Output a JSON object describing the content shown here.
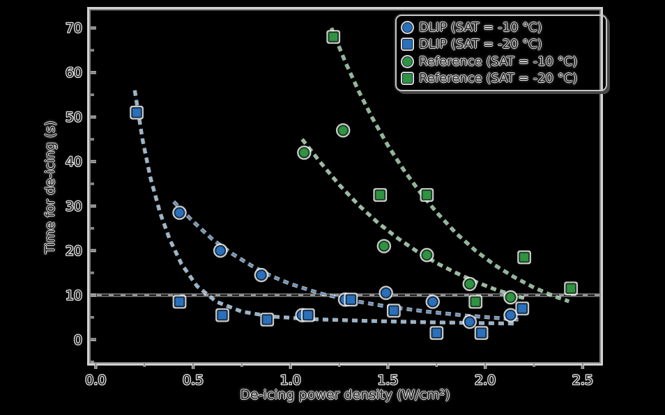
{
  "figure": {
    "background": "#000000"
  },
  "chart_data": {
    "type": "scatter",
    "title": "",
    "xlabel": "De-icing power density (W/cm²)",
    "ylabel": "Time for de-icing (s)",
    "xlim": [
      -0.03,
      2.59
    ],
    "ylim": [
      -5.2,
      74.1
    ],
    "grid": false,
    "legend_position": "upper right",
    "x_major_ticks": [
      0.0,
      0.5,
      1.0,
      1.5,
      2.0,
      2.5
    ],
    "x_tick_labels": [
      "0.0",
      "0.5",
      "1.0",
      "1.5",
      "2.0",
      "2.5"
    ],
    "x_minor_step": 0.25,
    "y_major_ticks": [
      0,
      10,
      20,
      30,
      40,
      50,
      60,
      70
    ],
    "y_tick_labels": [
      "0",
      "10",
      "20",
      "30",
      "40",
      "50",
      "60",
      "70"
    ],
    "y_minor_step": 5,
    "reference_line": {
      "y": 10,
      "description": "de-icing time threshold, black dashed over gray solid"
    },
    "colors": {
      "blue_marker": "#2a70ba",
      "blue_marker_edge": "#142a42",
      "green_marker": "#2f9342",
      "green_marker_edge": "#15381d",
      "dlip_fit_minus10": "#5c8ec4",
      "dlip_fit_minus20": "#8ebadf",
      "reference_fit_minus10": "#8cc99a",
      "reference_fit_minus20": "#7cc28c",
      "threshold_gray": "#9c9c9c",
      "threshold_black": "#111111",
      "spine_gray": "#828282",
      "spine_highlight": "#d2d2d2"
    },
    "series": [
      {
        "name": "dlip_sat_minus10",
        "label": "DLIP (SAT = -10 °C)",
        "marker": "circle",
        "color": "#2a70ba",
        "edge": "#142a42",
        "fit_color": "#5c8ec4",
        "points": [
          [
            0.43,
            28.5
          ],
          [
            0.64,
            20
          ],
          [
            0.85,
            14.5
          ],
          [
            1.06,
            5.5
          ],
          [
            1.28,
            9
          ],
          [
            1.49,
            10.5
          ],
          [
            1.73,
            8.5
          ],
          [
            1.92,
            4
          ],
          [
            2.13,
            5.5
          ]
        ],
        "fit": [
          [
            0.4,
            31
          ],
          [
            0.5,
            26.5
          ],
          [
            0.6,
            22.5
          ],
          [
            0.7,
            19.3
          ],
          [
            0.8,
            16.6
          ],
          [
            0.9,
            14.3
          ],
          [
            1.0,
            12.5
          ],
          [
            1.15,
            10.4
          ],
          [
            1.3,
            8.9
          ],
          [
            1.5,
            7.4
          ],
          [
            1.7,
            6.3
          ],
          [
            1.9,
            5.4
          ],
          [
            2.05,
            4.9
          ],
          [
            2.17,
            4.5
          ]
        ]
      },
      {
        "name": "dlip_sat_minus20",
        "label": "DLIP (SAT = -20 °C)",
        "marker": "square",
        "color": "#2a70ba",
        "edge": "#142a42",
        "fit_color": "#8ebadf",
        "points": [
          [
            0.21,
            51
          ],
          [
            0.43,
            8.5
          ],
          [
            0.65,
            5.5
          ],
          [
            0.88,
            4.5
          ],
          [
            1.09,
            5.5
          ],
          [
            1.31,
            9
          ],
          [
            1.53,
            6.5
          ],
          [
            1.75,
            1.5
          ],
          [
            1.98,
            1.5
          ],
          [
            2.19,
            7
          ]
        ],
        "fit": [
          [
            0.2,
            56
          ],
          [
            0.24,
            45
          ],
          [
            0.28,
            36.5
          ],
          [
            0.33,
            28.5
          ],
          [
            0.38,
            22.5
          ],
          [
            0.44,
            17
          ],
          [
            0.52,
            12
          ],
          [
            0.62,
            8.5
          ],
          [
            0.75,
            6.3
          ],
          [
            0.9,
            5.2
          ],
          [
            1.1,
            4.6
          ],
          [
            1.4,
            4.2
          ],
          [
            1.7,
            3.9
          ],
          [
            2.0,
            3.7
          ],
          [
            2.16,
            3.6
          ]
        ]
      },
      {
        "name": "reference_sat_minus10",
        "label": "Reference (SAT = -10 °C)",
        "marker": "circle",
        "color": "#2f9342",
        "edge": "#15381d",
        "fit_color": "#8cc99a",
        "points": [
          [
            1.07,
            42
          ],
          [
            1.27,
            47
          ],
          [
            1.48,
            21
          ],
          [
            1.7,
            19
          ],
          [
            1.92,
            12.5
          ],
          [
            2.13,
            9.5
          ]
        ],
        "fit": [
          [
            1.06,
            45
          ],
          [
            1.15,
            40
          ],
          [
            1.25,
            34.8
          ],
          [
            1.35,
            30.2
          ],
          [
            1.45,
            26.2
          ],
          [
            1.55,
            22.8
          ],
          [
            1.65,
            19.8
          ],
          [
            1.75,
            17.2
          ],
          [
            1.85,
            15
          ],
          [
            1.95,
            13
          ],
          [
            2.05,
            11.3
          ],
          [
            2.15,
            9.9
          ],
          [
            2.22,
            9.1
          ]
        ]
      },
      {
        "name": "reference_sat_minus20",
        "label": "Reference (SAT = -20 °C)",
        "marker": "square",
        "color": "#2f9342",
        "edge": "#15381d",
        "fit_color": "#7cc28c",
        "points": [
          [
            1.22,
            68
          ],
          [
            1.46,
            32.5
          ],
          [
            1.7,
            32.5
          ],
          [
            1.95,
            8.5
          ],
          [
            2.2,
            18.5
          ],
          [
            2.44,
            11.5
          ]
        ],
        "fit": [
          [
            1.21,
            70
          ],
          [
            1.28,
            62.5
          ],
          [
            1.35,
            55.8
          ],
          [
            1.42,
            49.8
          ],
          [
            1.5,
            43.6
          ],
          [
            1.58,
            38.2
          ],
          [
            1.66,
            33.4
          ],
          [
            1.75,
            28.6
          ],
          [
            1.85,
            23.9
          ],
          [
            1.95,
            20
          ],
          [
            2.05,
            16.7
          ],
          [
            2.15,
            14
          ],
          [
            2.25,
            11.7
          ],
          [
            2.35,
            9.8
          ],
          [
            2.43,
            8.6
          ]
        ]
      }
    ]
  }
}
